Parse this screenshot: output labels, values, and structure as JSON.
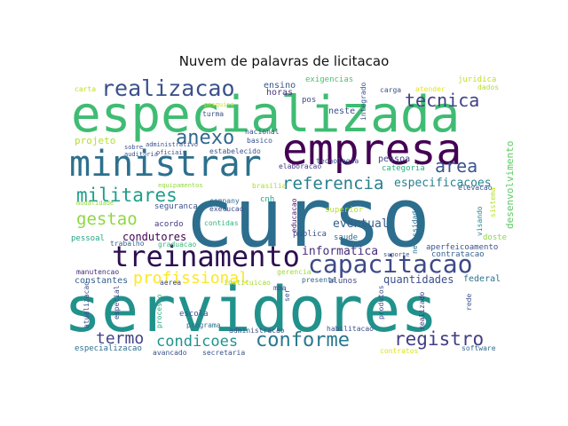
{
  "chart_data": {
    "type": "wordcloud",
    "title": "Nuvem de palavras de licitacao",
    "words": [
      {
        "text": "curso",
        "weight": 100,
        "color": "#2c6e8e"
      },
      {
        "text": "servidores",
        "weight": 70,
        "color": "#21918c"
      },
      {
        "text": "especializada",
        "weight": 60,
        "color": "#3fbc73"
      },
      {
        "text": "empresa",
        "weight": 52,
        "color": "#440154"
      },
      {
        "text": "ministrar",
        "weight": 45,
        "color": "#2d708e"
      },
      {
        "text": "treinamento",
        "weight": 35,
        "color": "#2b0f4f"
      },
      {
        "text": "capacitacao",
        "weight": 33,
        "color": "#3e4989"
      },
      {
        "text": "realizacao",
        "weight": 30,
        "color": "#3b528b"
      },
      {
        "text": "militares",
        "weight": 28,
        "color": "#1f9e89"
      },
      {
        "text": "conforme",
        "weight": 28,
        "color": "#2a788e"
      },
      {
        "text": "anexo",
        "weight": 26,
        "color": "#31688e"
      },
      {
        "text": "area",
        "weight": 26,
        "color": "#39568c"
      },
      {
        "text": "registro",
        "weight": 25,
        "color": "#433e85"
      },
      {
        "text": "referencia",
        "weight": 24,
        "color": "#277f8e"
      },
      {
        "text": "tecnica",
        "weight": 24,
        "color": "#424186"
      },
      {
        "text": "gestao",
        "weight": 22,
        "color": "#8fd744"
      },
      {
        "text": "profissional",
        "weight": 22,
        "color": "#fde725"
      },
      {
        "text": "termo",
        "weight": 22,
        "color": "#414487"
      },
      {
        "text": "condicoes",
        "weight": 20,
        "color": "#1f948c"
      },
      {
        "text": "especificacoes",
        "weight": 18,
        "color": "#26828e"
      },
      {
        "text": "quantidades",
        "weight": 16,
        "color": "#3d4e8a"
      },
      {
        "text": "informatica",
        "weight": 16,
        "color": "#472d7b"
      },
      {
        "text": "eventual",
        "weight": 15,
        "color": "#355f8d"
      },
      {
        "text": "condutores",
        "weight": 14,
        "color": "#440154"
      },
      {
        "text": "desenvolvimento",
        "weight": 14,
        "color": "#5ec962"
      },
      {
        "text": "projeto",
        "weight": 13,
        "color": "#b5de2b"
      },
      {
        "text": "constantes",
        "weight": 12,
        "color": "#355f8d"
      },
      {
        "text": "exigencias",
        "weight": 12,
        "color": "#4ac16d"
      },
      {
        "text": "ensino",
        "weight": 12,
        "color": "#39568c"
      },
      {
        "text": "horas",
        "weight": 11,
        "color": "#453781"
      },
      {
        "text": "neste",
        "weight": 11,
        "color": "#3b528b"
      },
      {
        "text": "pessoa",
        "weight": 11,
        "color": "#404688"
      },
      {
        "text": "pos",
        "weight": 10,
        "color": "#3e4989"
      },
      {
        "text": "categoria",
        "weight": 10,
        "color": "#29af7f"
      },
      {
        "text": "tecnologia",
        "weight": 9,
        "color": "#3b528b"
      },
      {
        "text": "integrado",
        "weight": 9,
        "color": "#39568c"
      },
      {
        "text": "elaboracao",
        "weight": 9,
        "color": "#443983"
      },
      {
        "text": "superior",
        "weight": 10,
        "color": "#b8de29"
      },
      {
        "text": "saude",
        "weight": 10,
        "color": "#2d708e"
      },
      {
        "text": "publica",
        "weight": 10,
        "color": "#3b528b"
      },
      {
        "text": "presente",
        "weight": 9,
        "color": "#31688e"
      },
      {
        "text": "alunos",
        "weight": 9,
        "color": "#3e4a89"
      },
      {
        "text": "federal",
        "weight": 11,
        "color": "#2c728e"
      },
      {
        "text": "contratacao",
        "weight": 9,
        "color": "#33638d"
      },
      {
        "text": "aperfeicoamento",
        "weight": 9,
        "color": "#3b528b"
      },
      {
        "text": "doste",
        "weight": 9,
        "color": "#8fd744"
      },
      {
        "text": "visando",
        "weight": 9,
        "color": "#25858e"
      },
      {
        "text": "necessidades",
        "weight": 9,
        "color": "#2e6f8e"
      },
      {
        "text": "educacao",
        "weight": 9,
        "color": "#48186a"
      },
      {
        "text": "cnh",
        "weight": 9,
        "color": "#22a785"
      },
      {
        "text": "company",
        "weight": 8,
        "color": "#2f6c8e"
      },
      {
        "text": "execucao",
        "weight": 8,
        "color": "#3d4d8a"
      },
      {
        "text": "contidas",
        "weight": 9,
        "color": "#2fb47c"
      },
      {
        "text": "seguranca",
        "weight": 10,
        "color": "#3b528b"
      },
      {
        "text": "acordo",
        "weight": 10,
        "color": "#453781"
      },
      {
        "text": "pessoal",
        "weight": 10,
        "color": "#21a685"
      },
      {
        "text": "trabalho",
        "weight": 9,
        "color": "#31688e"
      },
      {
        "text": "graduacao",
        "weight": 9,
        "color": "#35b779"
      },
      {
        "text": "modalidade",
        "weight": 8,
        "color": "#90d743"
      },
      {
        "text": "equipamentos",
        "weight": 8,
        "color": "#95d840"
      },
      {
        "text": "brasilia",
        "weight": 9,
        "color": "#addc30"
      },
      {
        "text": "elevacao",
        "weight": 8,
        "color": "#3b528b"
      },
      {
        "text": "sistema",
        "weight": 8,
        "color": "#b8de29"
      },
      {
        "text": "manutencao",
        "weight": 9,
        "color": "#472c7a"
      },
      {
        "text": "aerea",
        "weight": 8,
        "color": "#3e4989"
      },
      {
        "text": "instituicao",
        "weight": 8,
        "color": "#a2da37"
      },
      {
        "text": "mba",
        "weight": 8,
        "color": "#3e4989"
      },
      {
        "text": "gerencia",
        "weight": 8,
        "color": "#a2da37"
      },
      {
        "text": "especial",
        "weight": 8,
        "color": "#3e4989"
      },
      {
        "text": "processo",
        "weight": 8,
        "color": "#28ae80"
      },
      {
        "text": "escola",
        "weight": 9,
        "color": "#3b528b"
      },
      {
        "text": "programa",
        "weight": 9,
        "color": "#2c728e"
      },
      {
        "text": "administracao",
        "weight": 8,
        "color": "#3b528b"
      },
      {
        "text": "habilitacao",
        "weight": 8,
        "color": "#3d4d8a"
      },
      {
        "text": "ser",
        "weight": 8,
        "color": "#3b528b"
      },
      {
        "text": "produtos",
        "weight": 8,
        "color": "#3e4a89"
      },
      {
        "text": "realizado",
        "weight": 8,
        "color": "#453781"
      },
      {
        "text": "rede",
        "weight": 8,
        "color": "#3b528b"
      },
      {
        "text": "atualizacao",
        "weight": 8,
        "color": "#3b528b"
      },
      {
        "text": "especializacao",
        "weight": 9,
        "color": "#2e6f8e"
      },
      {
        "text": "avancado",
        "weight": 8,
        "color": "#3b528b"
      },
      {
        "text": "secretaria",
        "weight": 8,
        "color": "#3b528b"
      },
      {
        "text": "contratos",
        "weight": 8,
        "color": "#d8e219"
      },
      {
        "text": "software",
        "weight": 8,
        "color": "#31688e"
      },
      {
        "text": "juridica",
        "weight": 9,
        "color": "#c0df25"
      },
      {
        "text": "dados",
        "weight": 8,
        "color": "#b5de2b"
      },
      {
        "text": "atender",
        "weight": 8,
        "color": "#e5e419"
      },
      {
        "text": "carga",
        "weight": 8,
        "color": "#3b528b"
      },
      {
        "text": "carta",
        "weight": 8,
        "color": "#bddf26"
      },
      {
        "text": "pesquisa",
        "weight": 8,
        "color": "#d0e11c"
      },
      {
        "text": "turma",
        "weight": 8,
        "color": "#3b528b"
      },
      {
        "text": "nacional",
        "weight": 8,
        "color": "#3b528b"
      },
      {
        "text": "basico",
        "weight": 8,
        "color": "#3b528b"
      },
      {
        "text": "estabelecido",
        "weight": 8,
        "color": "#3b528b"
      },
      {
        "text": "administrativo",
        "weight": 8,
        "color": "#3b528b"
      },
      {
        "text": "oficiais",
        "weight": 8,
        "color": "#3b528b"
      },
      {
        "text": "auditoria",
        "weight": 8,
        "color": "#3b528b"
      },
      {
        "text": "sobre",
        "weight": 8,
        "color": "#3b528b"
      },
      {
        "text": "suporte",
        "weight": 8,
        "color": "#3b528b"
      }
    ]
  }
}
